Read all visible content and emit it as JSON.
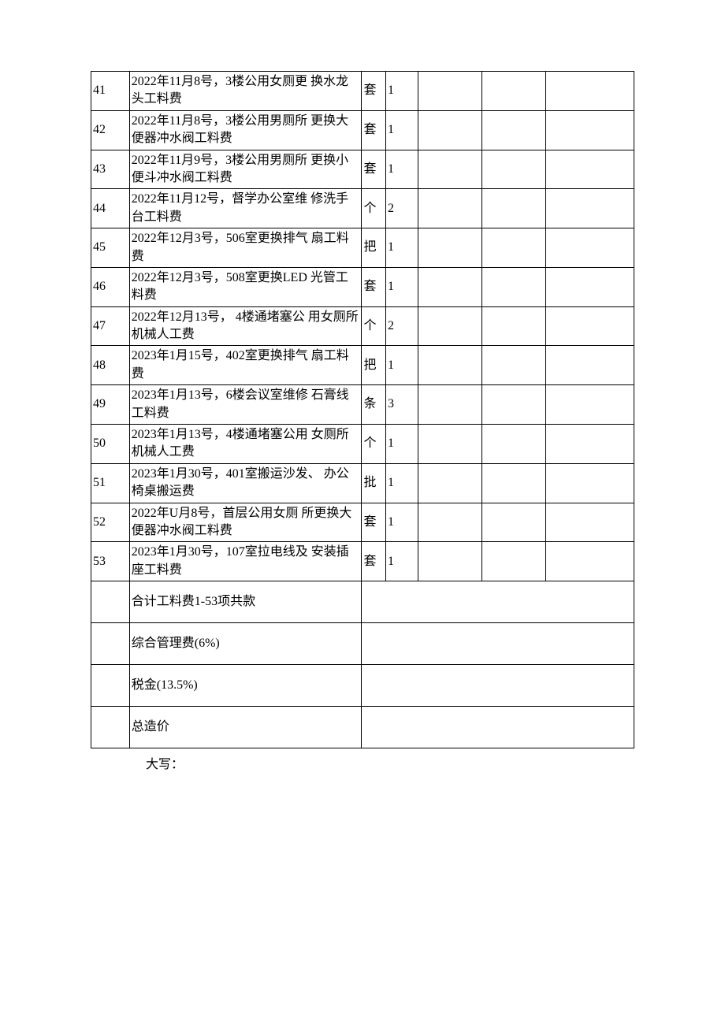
{
  "table": {
    "columns": {
      "no_width": 48,
      "desc_width": 290,
      "unit_width": 30,
      "qty_width": 40,
      "col5_width": 80,
      "col6_width": 80,
      "col7_width": 110
    },
    "border_color": "#000000",
    "font_family": "SimSun",
    "font_size": 16,
    "rows": [
      {
        "no": "41",
        "desc": "2022年11月8号，3楼公用女厕更 换水龙头工料费",
        "unit": "套",
        "qty": "1"
      },
      {
        "no": "42",
        "desc": "2022年11月8号，3楼公用男厕所 更换大便器冲水阀工料费",
        "unit": "套",
        "qty": "1"
      },
      {
        "no": "43",
        "desc": "2022年11月9号，3楼公用男厕所 更换小便斗冲水阀工料费",
        "unit": "套",
        "qty": "1"
      },
      {
        "no": "44",
        "desc": "2022年11月12号，督学办公室维 修洗手台工料费",
        "unit": "个",
        "qty": "2"
      },
      {
        "no": "45",
        "desc": "2022年12月3号，506室更换排气 扇工料费",
        "unit": "把",
        "qty": "1"
      },
      {
        "no": "46",
        "desc": "2022年12月3号，508室更换LED   光管工料费",
        "unit": "套",
        "qty": "1"
      },
      {
        "no": "47",
        "desc": "2022年12月13号， 4楼通堵塞公 用女厕所机械人工费",
        "unit": "个",
        "qty": "2"
      },
      {
        "no": "48",
        "desc": "2023年1月15号，402室更换排气 扇工料费",
        "unit": "把",
        "qty": "1"
      },
      {
        "no": "49",
        "desc": "2023年1月13号，6楼会议室维修 石膏线工料费",
        "unit": "条",
        "qty": "3"
      },
      {
        "no": "50",
        "desc": "2023年1月13号，4楼通堵塞公用 女厕所机械人工费",
        "unit": "个",
        "qty": "1"
      },
      {
        "no": "51",
        "desc": "2023年1月30号，401室搬运沙发、  办公椅桌搬运费",
        "unit": "批",
        "qty": "1"
      },
      {
        "no": "52",
        "desc": "2022年U月8号，首层公用女厕 所更换大便器冲水阀工料费",
        "unit": "套",
        "qty": "1"
      },
      {
        "no": "53",
        "desc": "2023年1月30号，107室拉电线及 安装插座工料费",
        "unit": "套",
        "qty": "1"
      }
    ],
    "summary": [
      {
        "label": "合计工料费1-53项共款"
      },
      {
        "label": "综合管理费(6%)"
      },
      {
        "label": "税金(13.5%)"
      },
      {
        "label": "总造价"
      }
    ]
  },
  "footer": {
    "label": "大写："
  }
}
